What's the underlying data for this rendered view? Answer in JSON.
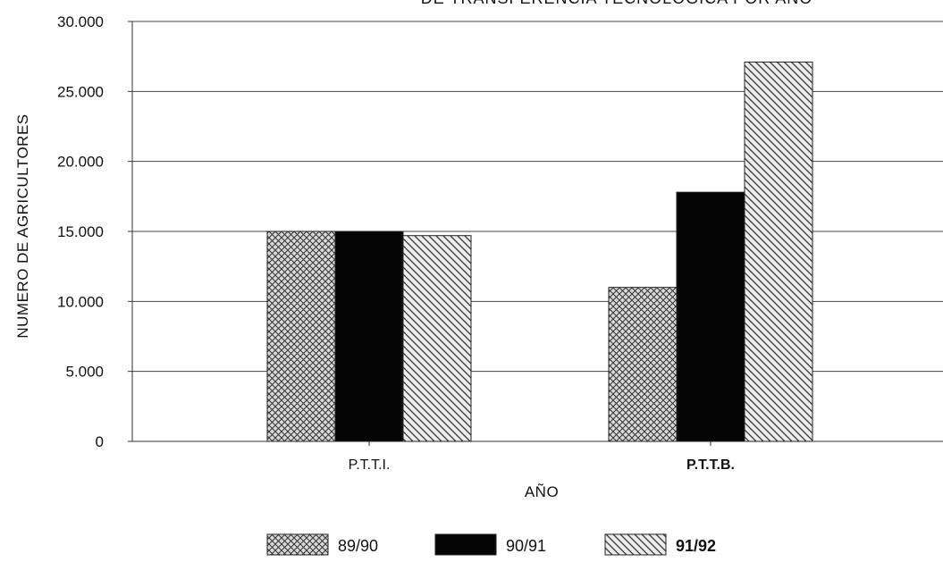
{
  "chart_data": {
    "type": "bar",
    "title": "DE TRANSFERENCIA TECNOLOGICA POR AÑO",
    "xlabel": "AÑO",
    "ylabel": "NUMERO DE AGRICULTORES",
    "categories": [
      "P.T.T.I.",
      "P.T.T.B."
    ],
    "series": [
      {
        "name": "89/90",
        "values": [
          15000,
          11000
        ],
        "pattern": "crosshatch",
        "color": "#555555"
      },
      {
        "name": "90/91",
        "values": [
          15000,
          17800
        ],
        "pattern": "solid",
        "color": "#000000"
      },
      {
        "name": "91/92",
        "values": [
          14700,
          27100
        ],
        "pattern": "diagonal",
        "color": "#555555"
      }
    ],
    "ylim": [
      0,
      30000
    ],
    "yticks": [
      "0",
      "5.000",
      "10.000",
      "15.000",
      "20.000",
      "25.000",
      "30.000"
    ],
    "ytick_values": [
      0,
      5000,
      10000,
      15000,
      20000,
      25000,
      30000
    ],
    "grid": true,
    "legend_position": "bottom"
  }
}
